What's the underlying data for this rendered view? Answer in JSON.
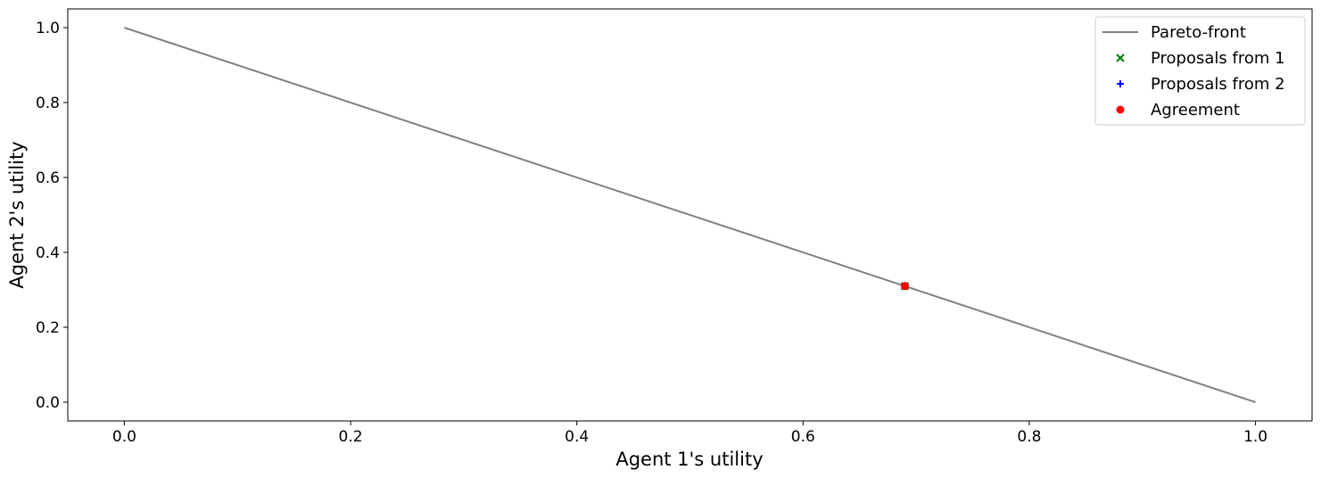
{
  "chart_data": {
    "type": "scatter",
    "title": "",
    "xlabel": "Agent 1's utility",
    "ylabel": "Agent 2's utility",
    "xlim": [
      -0.05,
      1.05
    ],
    "ylim": [
      -0.05,
      1.05
    ],
    "xticks": [
      0.0,
      0.2,
      0.4,
      0.6,
      0.8,
      1.0
    ],
    "yticks": [
      0.0,
      0.2,
      0.4,
      0.6,
      0.8,
      1.0
    ],
    "xtick_labels": [
      "0.0",
      "0.2",
      "0.4",
      "0.6",
      "0.8",
      "1.0"
    ],
    "ytick_labels": [
      "0.0",
      "0.2",
      "0.4",
      "0.6",
      "0.8",
      "1.0"
    ],
    "grid": false,
    "legend_position": "top-right",
    "series": [
      {
        "name": "Pareto-front",
        "kind": "line",
        "color": "#808080",
        "points": [
          [
            0.0,
            1.0
          ],
          [
            1.0,
            0.0
          ]
        ]
      },
      {
        "name": "Proposals from 1",
        "kind": "scatter",
        "marker": "x",
        "color": "#008000",
        "points": [
          [
            0.69,
            0.31
          ]
        ]
      },
      {
        "name": "Proposals from 2",
        "kind": "scatter",
        "marker": "+",
        "color": "#0000ff",
        "points": [
          [
            0.69,
            0.31
          ]
        ]
      },
      {
        "name": "Agreement",
        "kind": "scatter",
        "marker": "o",
        "color": "#ff0000",
        "points": [
          [
            0.69,
            0.31
          ]
        ]
      }
    ]
  }
}
